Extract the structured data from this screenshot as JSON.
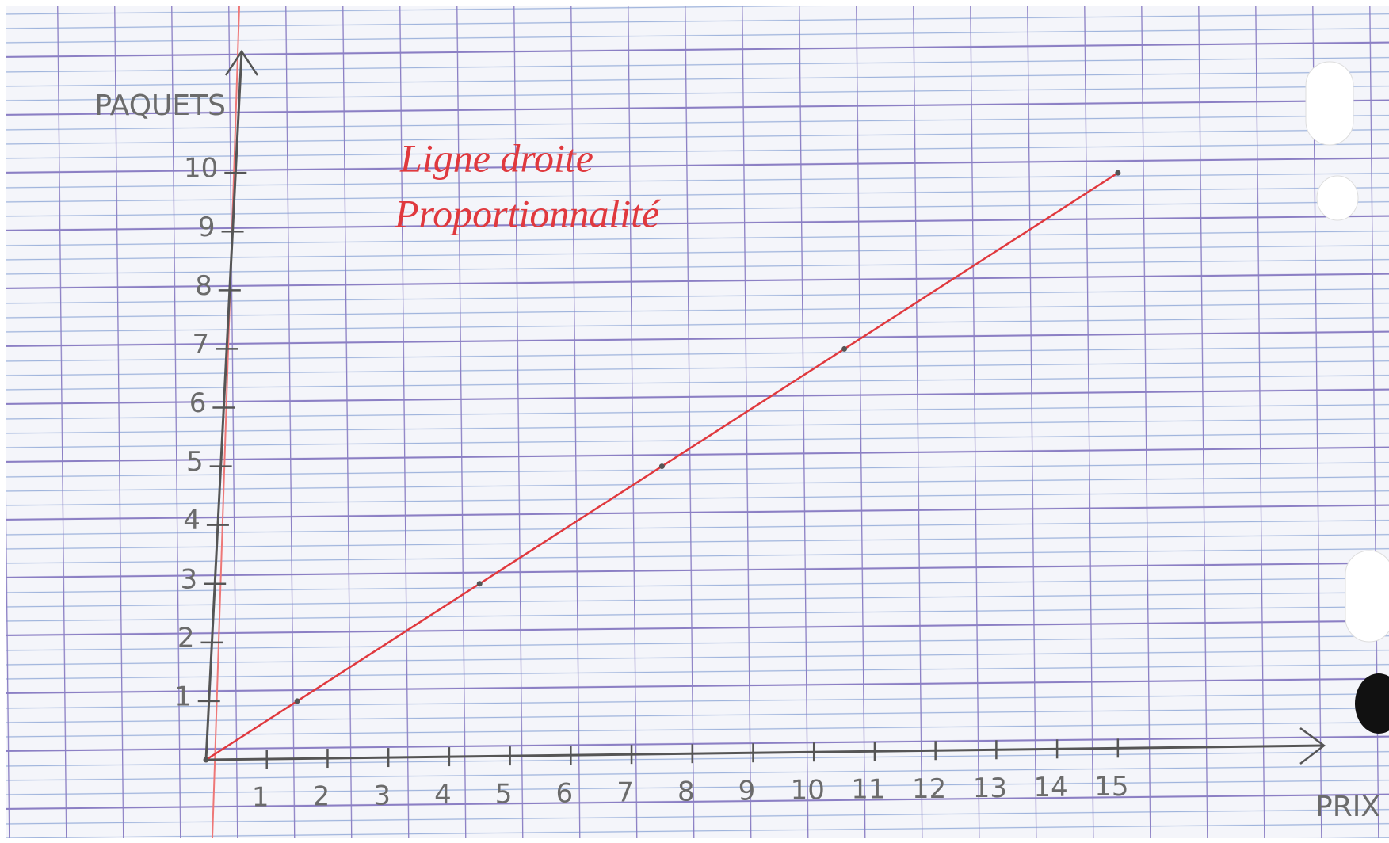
{
  "chart_data": {
    "type": "line",
    "xlabel": "PRIX",
    "ylabel": "PAQUETS",
    "annotations": [
      "Ligne droite",
      "Proportionnalité"
    ],
    "x": [
      0,
      1.5,
      4.5,
      7.5,
      10.5,
      15
    ],
    "series": [
      {
        "color": "#e0393e",
        "values": [
          0,
          1,
          3,
          5,
          7,
          10
        ]
      }
    ],
    "xlim": [
      0,
      18
    ],
    "ylim": [
      0,
      12
    ],
    "xticks": [
      1,
      2,
      3,
      4,
      5,
      6,
      7,
      8,
      9,
      10,
      11,
      12,
      13,
      14,
      15
    ],
    "yticks": [
      1,
      2,
      3,
      4,
      5,
      6,
      7,
      8,
      9,
      10
    ]
  }
}
